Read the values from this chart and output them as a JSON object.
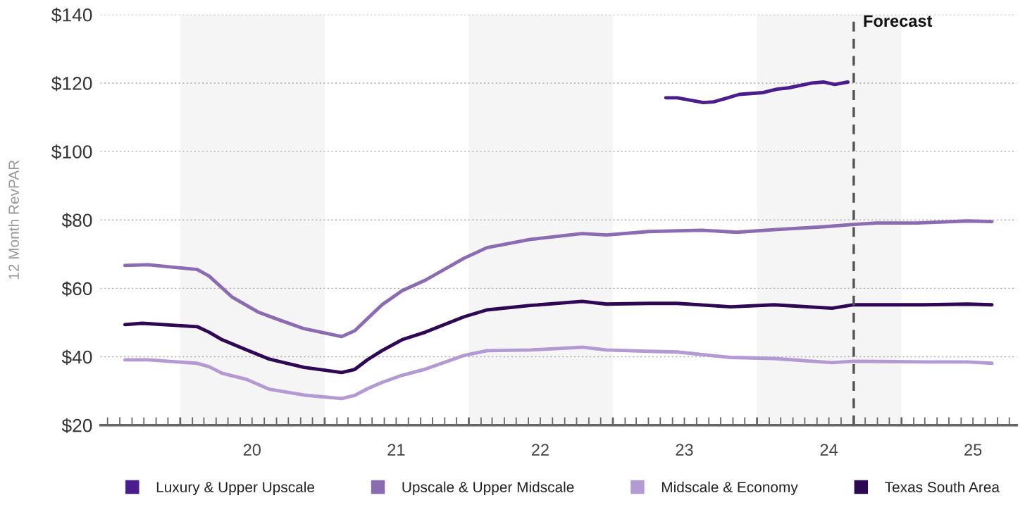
{
  "chart_data": {
    "type": "line",
    "ylabel": "12 Month RevPAR",
    "xlim": [
      "2019-06-13",
      "2025-10-20"
    ],
    "ylim": [
      20,
      140
    ],
    "yticks": [
      {
        "value": 20,
        "label": "$20"
      },
      {
        "value": 40,
        "label": "$40"
      },
      {
        "value": 60,
        "label": "$60"
      },
      {
        "value": 80,
        "label": "$80"
      },
      {
        "value": 100,
        "label": "$100"
      },
      {
        "value": 120,
        "label": "$120"
      },
      {
        "value": 140,
        "label": "$140"
      }
    ],
    "xticks": [
      {
        "value": "2019-07-01",
        "label": null
      },
      {
        "value": "2019-08-01",
        "label": null
      },
      {
        "value": "2019-09-01",
        "label": null
      },
      {
        "value": "2019-10-01",
        "label": null
      },
      {
        "value": "2019-11-01",
        "label": null
      },
      {
        "value": "2019-12-01",
        "label": null
      },
      {
        "value": "2020-01-01",
        "label": null
      },
      {
        "value": "2020-02-01",
        "label": null
      },
      {
        "value": "2020-03-01",
        "label": null
      },
      {
        "value": "2020-04-01",
        "label": null
      },
      {
        "value": "2020-05-01",
        "label": null
      },
      {
        "value": "2020-06-01",
        "label": null
      },
      {
        "value": "2020-07-01",
        "label": "20"
      },
      {
        "value": "2020-08-01",
        "label": null
      },
      {
        "value": "2020-09-01",
        "label": null
      },
      {
        "value": "2020-10-01",
        "label": null
      },
      {
        "value": "2020-11-01",
        "label": null
      },
      {
        "value": "2020-12-01",
        "label": null
      },
      {
        "value": "2021-01-01",
        "label": null
      },
      {
        "value": "2021-02-01",
        "label": null
      },
      {
        "value": "2021-03-01",
        "label": null
      },
      {
        "value": "2021-04-01",
        "label": null
      },
      {
        "value": "2021-05-01",
        "label": null
      },
      {
        "value": "2021-06-01",
        "label": null
      },
      {
        "value": "2021-07-01",
        "label": "21"
      },
      {
        "value": "2021-08-01",
        "label": null
      },
      {
        "value": "2021-09-01",
        "label": null
      },
      {
        "value": "2021-10-01",
        "label": null
      },
      {
        "value": "2021-11-01",
        "label": null
      },
      {
        "value": "2021-12-01",
        "label": null
      },
      {
        "value": "2022-01-01",
        "label": null
      },
      {
        "value": "2022-02-01",
        "label": null
      },
      {
        "value": "2022-03-01",
        "label": null
      },
      {
        "value": "2022-04-01",
        "label": null
      },
      {
        "value": "2022-05-01",
        "label": null
      },
      {
        "value": "2022-06-01",
        "label": null
      },
      {
        "value": "2022-07-01",
        "label": "22"
      },
      {
        "value": "2022-08-01",
        "label": null
      },
      {
        "value": "2022-09-01",
        "label": null
      },
      {
        "value": "2022-10-01",
        "label": null
      },
      {
        "value": "2022-11-01",
        "label": null
      },
      {
        "value": "2022-12-01",
        "label": null
      },
      {
        "value": "2023-01-01",
        "label": null
      },
      {
        "value": "2023-02-01",
        "label": null
      },
      {
        "value": "2023-03-01",
        "label": null
      },
      {
        "value": "2023-04-01",
        "label": null
      },
      {
        "value": "2023-05-01",
        "label": null
      },
      {
        "value": "2023-06-01",
        "label": null
      },
      {
        "value": "2023-07-01",
        "label": "23"
      },
      {
        "value": "2023-08-01",
        "label": null
      },
      {
        "value": "2023-09-01",
        "label": null
      },
      {
        "value": "2023-10-01",
        "label": null
      },
      {
        "value": "2023-11-01",
        "label": null
      },
      {
        "value": "2023-12-01",
        "label": null
      },
      {
        "value": "2024-01-01",
        "label": null
      },
      {
        "value": "2024-02-01",
        "label": null
      },
      {
        "value": "2024-03-01",
        "label": null
      },
      {
        "value": "2024-04-01",
        "label": null
      },
      {
        "value": "2024-05-01",
        "label": null
      },
      {
        "value": "2024-06-01",
        "label": null
      },
      {
        "value": "2024-07-01",
        "label": "24"
      },
      {
        "value": "2024-08-01",
        "label": null
      },
      {
        "value": "2024-09-01",
        "label": null
      },
      {
        "value": "2024-10-01",
        "label": null
      },
      {
        "value": "2024-11-01",
        "label": null
      },
      {
        "value": "2024-12-01",
        "label": null
      },
      {
        "value": "2025-01-01",
        "label": null
      },
      {
        "value": "2025-02-01",
        "label": null
      },
      {
        "value": "2025-03-01",
        "label": null
      },
      {
        "value": "2025-04-01",
        "label": null
      },
      {
        "value": "2025-05-01",
        "label": null
      },
      {
        "value": "2025-06-01",
        "label": null
      },
      {
        "value": "2025-07-01",
        "label": "25"
      },
      {
        "value": "2025-08-01",
        "label": null
      },
      {
        "value": "2025-09-01",
        "label": null
      },
      {
        "value": "2025-10-01",
        "label": null
      }
    ],
    "series": [
      {
        "name": "Luxury & Upper Upscale",
        "color": "#4b1c8c",
        "x": [
          "2023-05-15",
          "2023-06-13",
          "2023-08-18",
          "2023-09-13",
          "2023-10-19",
          "2023-11-17",
          "2024-01-15",
          "2024-02-20",
          "2024-03-21",
          "2024-04-23",
          "2024-05-19",
          "2024-06-17",
          "2024-07-16",
          "2024-08-18"
        ],
        "values": [
          115.7,
          115.7,
          114.3,
          114.5,
          115.7,
          116.7,
          117.2,
          118.2,
          118.6,
          119.4,
          120.0,
          120.3,
          119.6,
          120.3
        ]
      },
      {
        "name": "Upscale & Upper Midscale",
        "color": "#8b6bb1",
        "x": [
          "2019-08-14",
          "2019-10-12",
          "2020-02-13",
          "2020-03-14",
          "2020-05-11",
          "2020-07-16",
          "2020-09-05",
          "2020-11-10",
          "2021-02-13",
          "2021-03-18",
          "2021-05-26",
          "2021-07-16",
          "2021-09-13",
          "2021-12-20",
          "2022-02-16",
          "2022-06-06",
          "2022-10-15",
          "2022-12-16",
          "2023-04-01",
          "2023-08-14",
          "2023-11-10",
          "2024-02-20",
          "2024-06-17",
          "2024-09-02",
          "2024-10-30",
          "2025-02-09",
          "2025-06-17",
          "2025-08-18"
        ],
        "values": [
          66.7,
          66.9,
          65.5,
          63.6,
          57.5,
          53.1,
          50.9,
          48.2,
          45.9,
          47.6,
          55.2,
          59.3,
          62.4,
          68.8,
          71.9,
          74.3,
          76.0,
          75.6,
          76.6,
          77.0,
          76.4,
          77.2,
          78.0,
          78.7,
          79.1,
          79.1,
          79.7,
          79.5
        ]
      },
      {
        "name": "Midscale & Economy",
        "color": "#b39ad3",
        "x": [
          "2019-08-14",
          "2019-10-12",
          "2020-02-13",
          "2020-03-14",
          "2020-04-16",
          "2020-06-17",
          "2020-08-14",
          "2020-11-10",
          "2021-02-13",
          "2021-03-18",
          "2021-04-20",
          "2021-05-26",
          "2021-07-16",
          "2021-09-13",
          "2021-12-20",
          "2022-02-16",
          "2022-06-06",
          "2022-10-15",
          "2022-12-16",
          "2023-04-01",
          "2023-06-13",
          "2023-10-26",
          "2024-02-13",
          "2024-07-09",
          "2024-09-02",
          "2025-02-27",
          "2025-06-17",
          "2025-08-18"
        ],
        "values": [
          39.1,
          39.1,
          38.1,
          37.1,
          35.2,
          33.4,
          30.5,
          28.8,
          27.8,
          28.7,
          30.7,
          32.5,
          34.6,
          36.4,
          40.4,
          41.8,
          42.0,
          42.8,
          42.0,
          41.6,
          41.4,
          39.8,
          39.5,
          38.3,
          38.7,
          38.5,
          38.5,
          38.1
        ]
      },
      {
        "name": "Texas South Area",
        "color": "#2e0854",
        "x": [
          "2019-08-14",
          "2019-09-27",
          "2020-02-13",
          "2020-03-14",
          "2020-04-16",
          "2020-06-17",
          "2020-08-14",
          "2020-11-10",
          "2021-02-13",
          "2021-03-18",
          "2021-04-20",
          "2021-05-26",
          "2021-07-16",
          "2021-09-13",
          "2021-12-20",
          "2022-02-16",
          "2022-06-06",
          "2022-10-15",
          "2022-12-16",
          "2023-04-01",
          "2023-06-13",
          "2023-10-26",
          "2024-02-13",
          "2024-07-09",
          "2024-09-02",
          "2025-02-27",
          "2025-06-17",
          "2025-08-18"
        ],
        "values": [
          49.4,
          49.8,
          48.8,
          47.2,
          45.0,
          42.0,
          39.3,
          36.9,
          35.4,
          36.3,
          39.2,
          41.8,
          45.0,
          47.2,
          51.7,
          53.7,
          55.0,
          56.2,
          55.4,
          55.6,
          55.6,
          54.6,
          55.2,
          54.2,
          55.2,
          55.2,
          55.4,
          55.2
        ]
      }
    ],
    "bands": [
      {
        "axis": "x",
        "from": "2020-01-01",
        "to": "2021-01-01",
        "color": "#f5f5f5"
      },
      {
        "axis": "x",
        "from": "2022-01-01",
        "to": "2023-01-01",
        "color": "#f5f5f5"
      },
      {
        "axis": "x",
        "from": "2024-01-01",
        "to": "2025-01-01",
        "color": "#f5f5f5"
      }
    ],
    "ref_lines": [
      {
        "axis": "x",
        "value": "2024-09-02",
        "label": "Forecast",
        "color": "#555555",
        "line_style": "dashed"
      }
    ],
    "grid": "y",
    "legend": "bottom",
    "line_style": "solid",
    "marker": "none"
  }
}
